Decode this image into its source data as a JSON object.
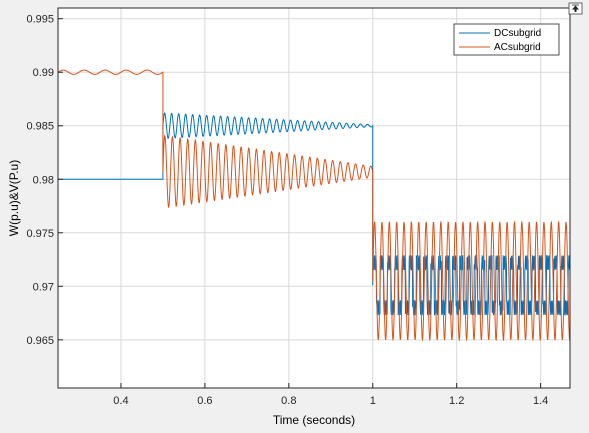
{
  "chart_data": {
    "type": "line",
    "xlabel": "Time (seconds)",
    "ylabel": "W(p.u)&V(P.u)",
    "xlim": [
      0.25,
      1.47
    ],
    "ylim": [
      0.9605,
      0.996
    ],
    "x_ticks": [
      "0.4",
      "0.6",
      "0.8",
      "1",
      "1.2",
      "1.4"
    ],
    "y_ticks": [
      "0.965",
      "0.97",
      "0.975",
      "0.98",
      "0.985",
      "0.99",
      "0.995"
    ],
    "grid": true,
    "legend_position": "top-right",
    "series": [
      {
        "name": "DCsubgrid",
        "color": "#0072bd",
        "segments": [
          {
            "x": [
              0.25,
              0.5
            ],
            "y": [
              0.98,
              0.98
            ],
            "note": ""
          },
          {
            "x": [
              0.5,
              1.0
            ],
            "y_center": 0.985,
            "amplitude_start": 0.0012,
            "amplitude_end": 0.0001
          },
          {
            "x": [
              1.0,
              1.47
            ],
            "y_center": 0.9701,
            "amplitude": 0.0028
          }
        ]
      },
      {
        "name": "ACsubgrid",
        "color": "#d95319",
        "segments": [
          {
            "x": [
              0.25,
              0.5
            ],
            "y_center": 0.99,
            "amplitude": 0.0002
          },
          {
            "x": [
              0.5,
              1.0
            ],
            "y_center": 0.9807,
            "amplitude_start": 0.0034,
            "amplitude_end": 0.0005
          },
          {
            "x": [
              1.0,
              1.47
            ],
            "y_center": 0.9705,
            "amplitude": 0.0055
          }
        ]
      }
    ]
  }
}
